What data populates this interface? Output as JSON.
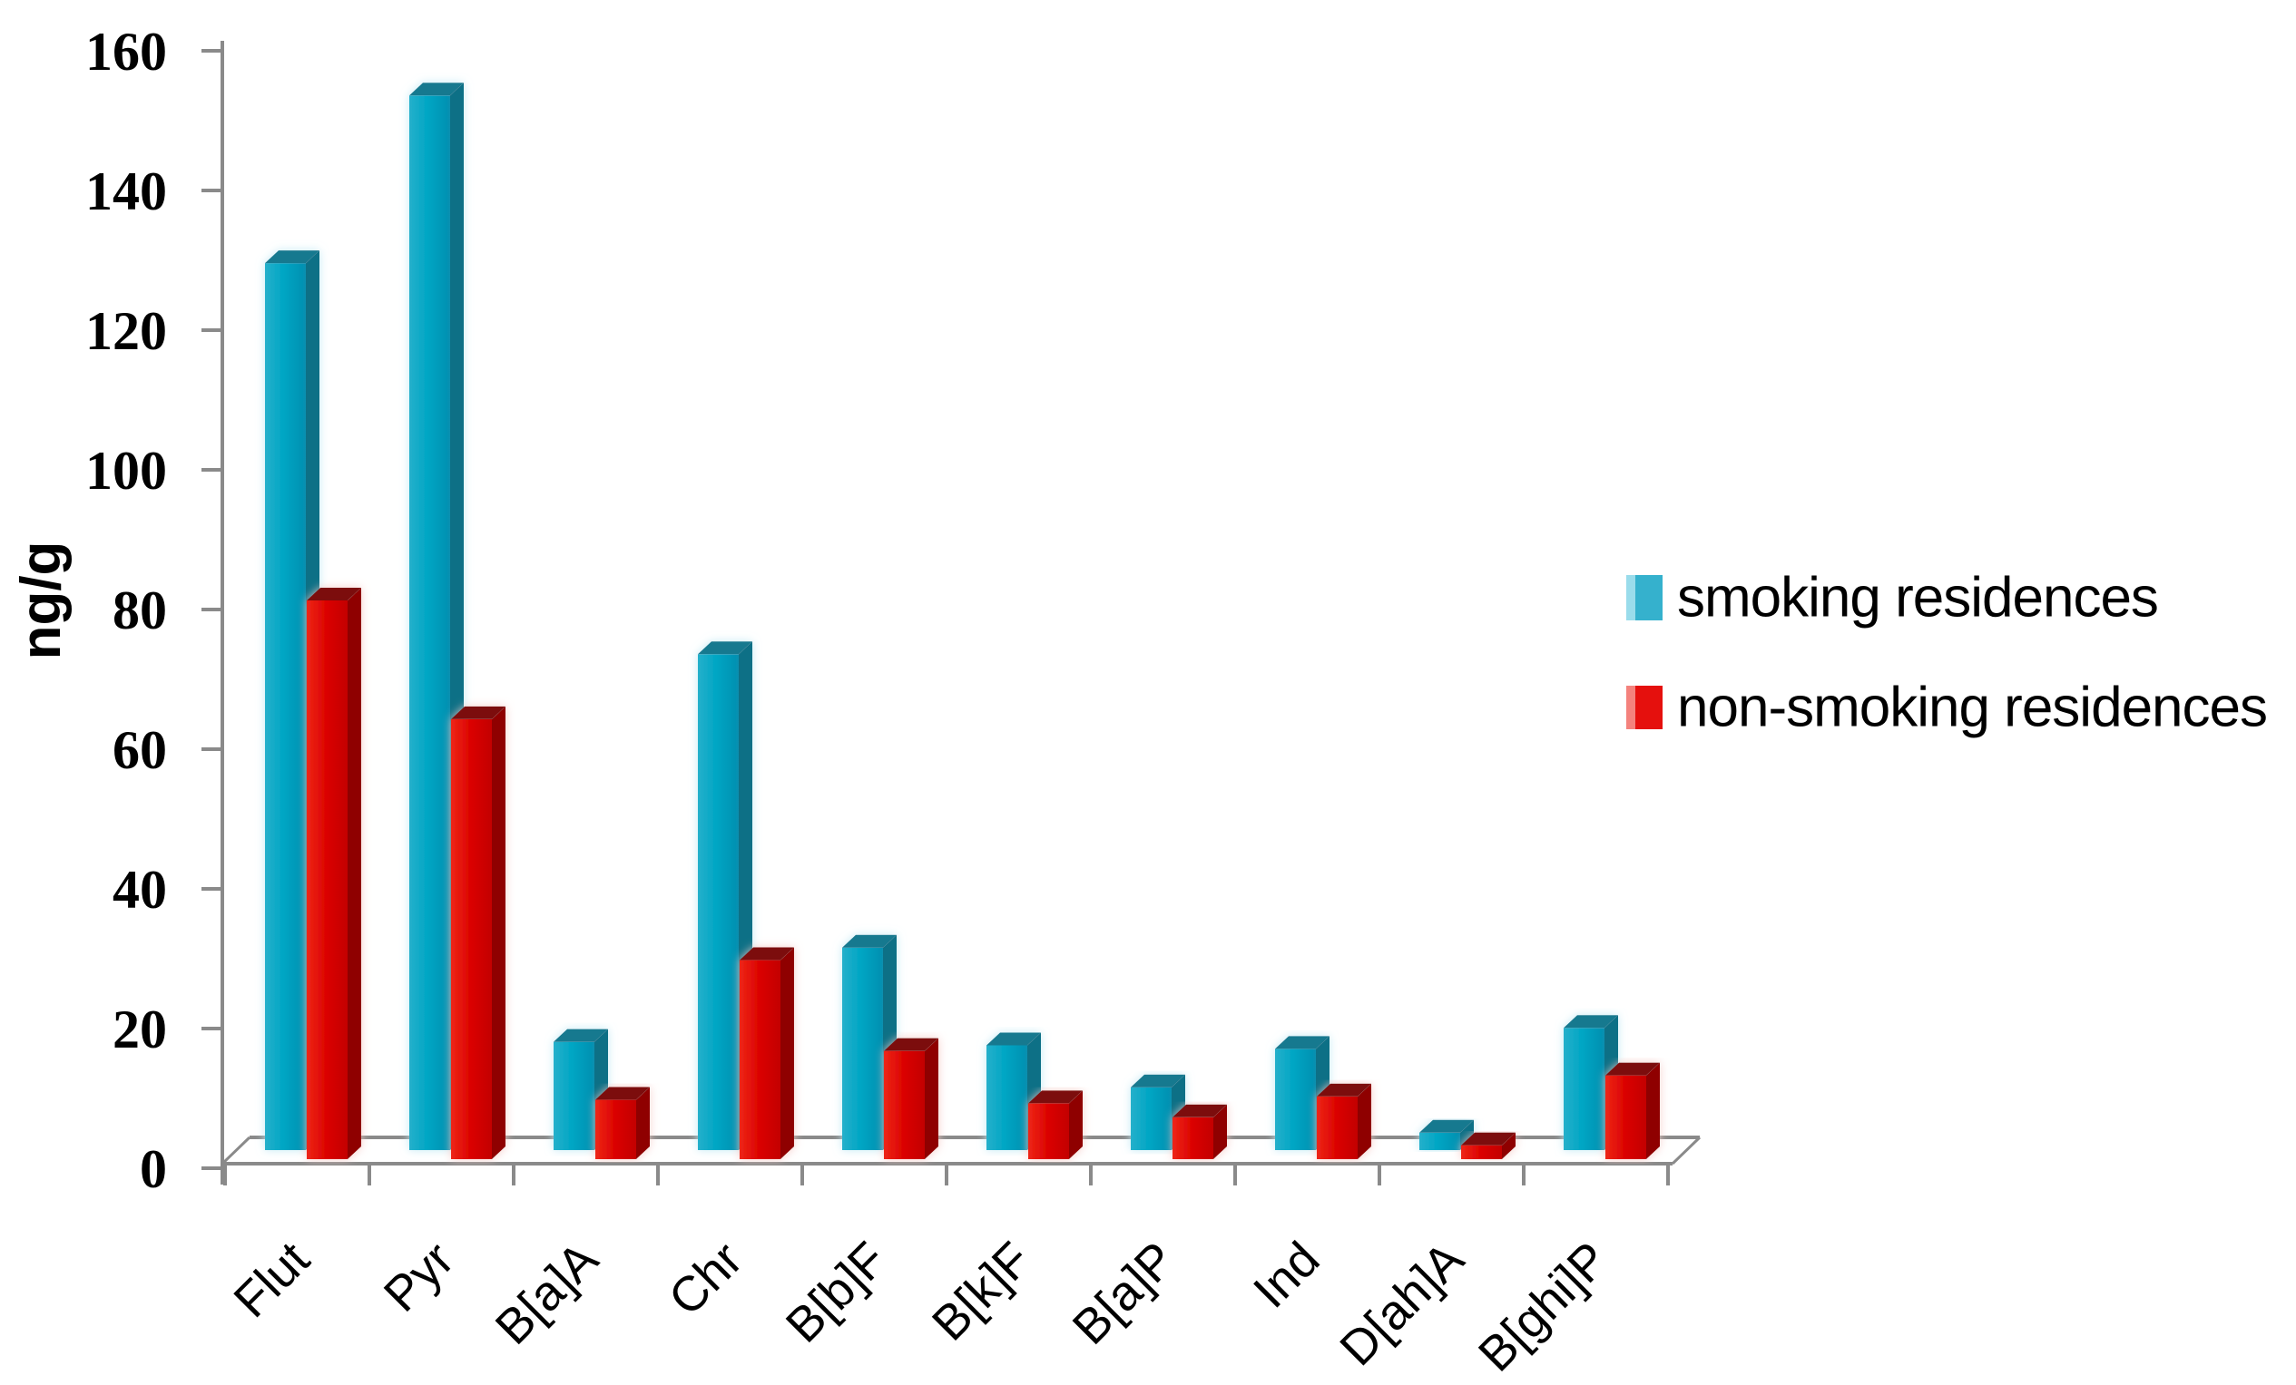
{
  "chart_data": {
    "type": "bar",
    "style": "3d-clustered-column",
    "title": "",
    "xlabel": "",
    "ylabel": "ng/g",
    "categories": [
      "Flut",
      "Pyr",
      "B[a]A",
      "Chr",
      "B[b]F",
      "B[k]F",
      "B[a]P",
      "Ind",
      "D[ah]A",
      "B[ghi]P"
    ],
    "series": [
      {
        "key": "smoking",
        "name": "smoking residences",
        "values": [
          127,
          151,
          15.5,
          71,
          29,
          15,
          9,
          14.5,
          2.5,
          17.5
        ],
        "color": "#00A6C4",
        "color_light": "#25B0CB",
        "color_dark": "#078FB0",
        "top_color": "#15798F",
        "side_color": "#0F6F86",
        "legend_color": "#35B1CD",
        "legend_highlight": "#9ADCEB",
        "glow_color": "#BEE8F4"
      },
      {
        "key": "non-smoking",
        "name": "non-smoking residences",
        "values": [
          80,
          63,
          8.5,
          28.5,
          15.5,
          8,
          6,
          9,
          2,
          12
        ],
        "color": "#DC0503",
        "color_light": "#EE2616",
        "color_dark": "#C30402",
        "top_color": "#7C0A08",
        "side_color": "#8F0503",
        "legend_color": "#E5100D",
        "legend_highlight": "#F4827D",
        "glow_color": "#F6C9C4"
      }
    ],
    "ylim": [
      0,
      160
    ],
    "yticks": [
      0,
      20,
      40,
      60,
      80,
      100,
      120,
      140,
      160
    ],
    "ytick_labels": [
      "0",
      "20",
      "40",
      "60",
      "80",
      "100",
      "120",
      "140",
      "160"
    ],
    "grid": false,
    "legend_position": "right",
    "colors": {
      "axis": "#8A8A8A",
      "text": "#000000",
      "background": "#FFFFFF"
    }
  }
}
